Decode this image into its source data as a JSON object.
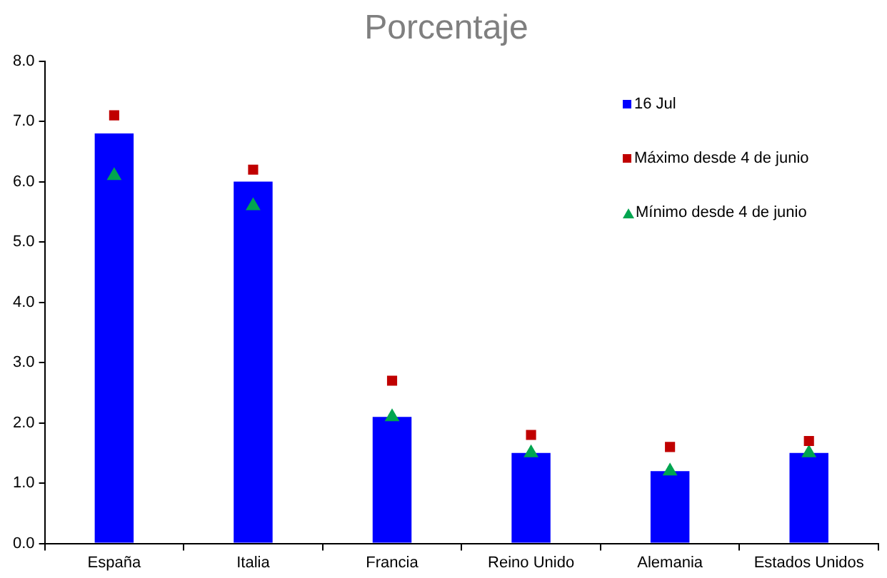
{
  "chart_data": {
    "type": "bar",
    "title": "Porcentaje",
    "categories": [
      "España",
      "Italia",
      "Francia",
      "Reino Unido",
      "Alemania",
      "Estados Unidos"
    ],
    "series": [
      {
        "name": "16 Jul",
        "color": "#0000ff",
        "values": [
          6.8,
          6.0,
          2.1,
          1.5,
          1.2,
          1.5
        ]
      },
      {
        "name": "Máximo desde 4 de junio",
        "type": "scatter",
        "marker": "square",
        "color": "#c00000",
        "x": [
          "España",
          "Italia",
          "Francia",
          "Reino Unido",
          "Alemania",
          "Estados Unidos"
        ],
        "values": [
          7.1,
          6.2,
          2.7,
          1.8,
          1.6,
          1.7
        ]
      },
      {
        "name": "Mínimo desde 4 de junio",
        "type": "scatter",
        "marker": "triangle",
        "color": "#00a550",
        "x": [
          "España",
          "Italia",
          "Francia",
          "Reino Unido",
          "Alemania",
          "Estados Unidos"
        ],
        "values": [
          6.1,
          5.6,
          2.1,
          1.5,
          1.2,
          1.5
        ]
      }
    ],
    "ylim": [
      0,
      8
    ],
    "yticks": [
      {
        "value": 0,
        "label": "0.0"
      },
      {
        "value": 1,
        "label": "1.0"
      },
      {
        "value": 2,
        "label": "2.0"
      },
      {
        "value": 3,
        "label": "3.0"
      },
      {
        "value": 4,
        "label": "4.0"
      },
      {
        "value": 5,
        "label": "5.0"
      },
      {
        "value": 6,
        "label": "6.0"
      },
      {
        "value": 7,
        "label": "7.0"
      },
      {
        "value": 8,
        "label": "8.0"
      }
    ],
    "grid": false,
    "legend": "top right"
  }
}
